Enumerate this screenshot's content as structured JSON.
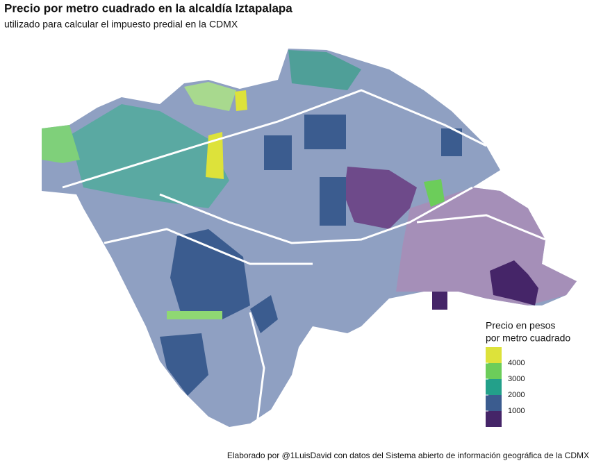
{
  "header": {
    "title": "Precio por metro cuadrado en la alcaldía Iztapalapa",
    "subtitle": "utilizado para calcular el impuesto predial en la CDMX"
  },
  "legend": {
    "title": [
      "Precio en pesos",
      "por metro cuadrado"
    ],
    "colors": [
      "#dde23a",
      "#6ccd5a",
      "#23a08a",
      "#3b5c8f",
      "#452568"
    ],
    "breaks": [
      4000,
      3000,
      2000,
      1000
    ]
  },
  "caption": "Elaborado por @1LuisDavid con datos del Sistema abierto de información geográfica de la CDMX"
}
